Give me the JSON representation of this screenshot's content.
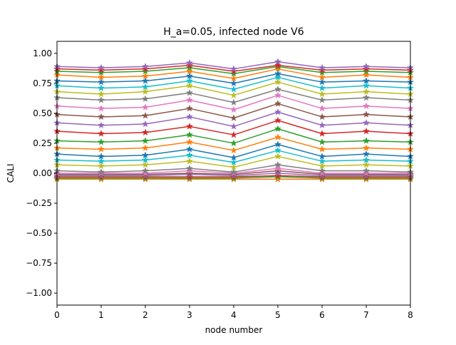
{
  "chart_data": {
    "type": "line",
    "title": "H_a=0.05, infected node V6",
    "xlabel": "node number",
    "ylabel": "CALI",
    "xlim": [
      0,
      8
    ],
    "ylim": [
      -1.1,
      1.1
    ],
    "xticks": [
      0,
      1,
      2,
      3,
      4,
      5,
      6,
      7,
      8
    ],
    "xtick_labels": [
      "0",
      "1",
      "2",
      "3",
      "4",
      "5",
      "6",
      "7",
      "8"
    ],
    "yticks": [
      -1.0,
      -0.75,
      -0.5,
      -0.25,
      0.0,
      0.25,
      0.5,
      0.75,
      1.0
    ],
    "ytick_labels": [
      "−1.00",
      "−0.75",
      "−0.50",
      "−0.25",
      "0.00",
      "0.25",
      "0.50",
      "0.75",
      "1.00"
    ],
    "grid": false,
    "legend": "none",
    "marker": "star",
    "x": [
      0,
      1,
      2,
      3,
      4,
      5,
      6,
      7,
      8
    ],
    "series": [
      {
        "color": "#1f77b4",
        "values": [
          -0.05,
          -0.05,
          -0.05,
          -0.05,
          -0.05,
          -0.05,
          -0.05,
          -0.05,
          -0.05
        ]
      },
      {
        "color": "#ff7f0e",
        "values": [
          -0.05,
          -0.05,
          -0.05,
          -0.05,
          -0.05,
          -0.05,
          -0.05,
          -0.05,
          -0.05
        ]
      },
      {
        "color": "#2ca02c",
        "values": [
          -0.04,
          -0.04,
          -0.04,
          -0.04,
          -0.04,
          -0.03,
          -0.04,
          -0.04,
          -0.04
        ]
      },
      {
        "color": "#d62728",
        "values": [
          -0.03,
          -0.03,
          -0.03,
          -0.03,
          -0.03,
          -0.02,
          -0.03,
          -0.03,
          -0.03
        ]
      },
      {
        "color": "#9467bd",
        "values": [
          -0.02,
          -0.02,
          -0.02,
          -0.01,
          -0.02,
          0.0,
          -0.02,
          -0.02,
          -0.02
        ]
      },
      {
        "color": "#8c564b",
        "values": [
          -0.01,
          -0.01,
          -0.01,
          0.0,
          -0.01,
          0.02,
          -0.01,
          -0.01,
          -0.01
        ]
      },
      {
        "color": "#e377c2",
        "values": [
          0.0,
          0.0,
          0.0,
          0.02,
          0.0,
          0.04,
          0.0,
          0.0,
          0.0
        ]
      },
      {
        "color": "#7f7f7f",
        "values": [
          0.02,
          0.01,
          0.02,
          0.04,
          0.01,
          0.07,
          0.02,
          0.02,
          0.01
        ]
      },
      {
        "color": "#bcbd22",
        "values": [
          0.07,
          0.06,
          0.07,
          0.1,
          0.05,
          0.14,
          0.06,
          0.07,
          0.06
        ]
      },
      {
        "color": "#17becf",
        "values": [
          0.11,
          0.1,
          0.11,
          0.15,
          0.09,
          0.19,
          0.1,
          0.11,
          0.1
        ]
      },
      {
        "color": "#1f77b4",
        "values": [
          0.16,
          0.14,
          0.15,
          0.2,
          0.13,
          0.24,
          0.14,
          0.16,
          0.14
        ]
      },
      {
        "color": "#ff7f0e",
        "values": [
          0.21,
          0.2,
          0.21,
          0.26,
          0.19,
          0.3,
          0.2,
          0.21,
          0.2
        ]
      },
      {
        "color": "#2ca02c",
        "values": [
          0.27,
          0.26,
          0.27,
          0.32,
          0.25,
          0.37,
          0.26,
          0.27,
          0.26
        ]
      },
      {
        "color": "#d62728",
        "values": [
          0.35,
          0.33,
          0.34,
          0.39,
          0.32,
          0.44,
          0.33,
          0.35,
          0.33
        ]
      },
      {
        "color": "#9467bd",
        "values": [
          0.42,
          0.4,
          0.41,
          0.47,
          0.39,
          0.51,
          0.4,
          0.42,
          0.4
        ]
      },
      {
        "color": "#8c564b",
        "values": [
          0.49,
          0.47,
          0.48,
          0.54,
          0.46,
          0.58,
          0.47,
          0.49,
          0.47
        ]
      },
      {
        "color": "#e377c2",
        "values": [
          0.56,
          0.54,
          0.55,
          0.61,
          0.53,
          0.65,
          0.54,
          0.56,
          0.54
        ]
      },
      {
        "color": "#7f7f7f",
        "values": [
          0.63,
          0.61,
          0.62,
          0.67,
          0.59,
          0.7,
          0.61,
          0.63,
          0.61
        ]
      },
      {
        "color": "#bcbd22",
        "values": [
          0.68,
          0.66,
          0.68,
          0.73,
          0.65,
          0.76,
          0.66,
          0.68,
          0.66
        ]
      },
      {
        "color": "#17becf",
        "values": [
          0.73,
          0.71,
          0.72,
          0.77,
          0.7,
          0.8,
          0.71,
          0.73,
          0.71
        ]
      },
      {
        "color": "#1f77b4",
        "values": [
          0.77,
          0.76,
          0.77,
          0.81,
          0.75,
          0.83,
          0.76,
          0.77,
          0.76
        ]
      },
      {
        "color": "#ff7f0e",
        "values": [
          0.82,
          0.8,
          0.81,
          0.85,
          0.79,
          0.87,
          0.8,
          0.82,
          0.8
        ]
      },
      {
        "color": "#2ca02c",
        "values": [
          0.85,
          0.84,
          0.85,
          0.88,
          0.83,
          0.89,
          0.84,
          0.85,
          0.84
        ]
      },
      {
        "color": "#d62728",
        "values": [
          0.87,
          0.86,
          0.87,
          0.9,
          0.85,
          0.9,
          0.86,
          0.87,
          0.86
        ]
      },
      {
        "color": "#9467bd",
        "values": [
          0.89,
          0.88,
          0.89,
          0.92,
          0.87,
          0.93,
          0.88,
          0.89,
          0.88
        ]
      }
    ]
  }
}
